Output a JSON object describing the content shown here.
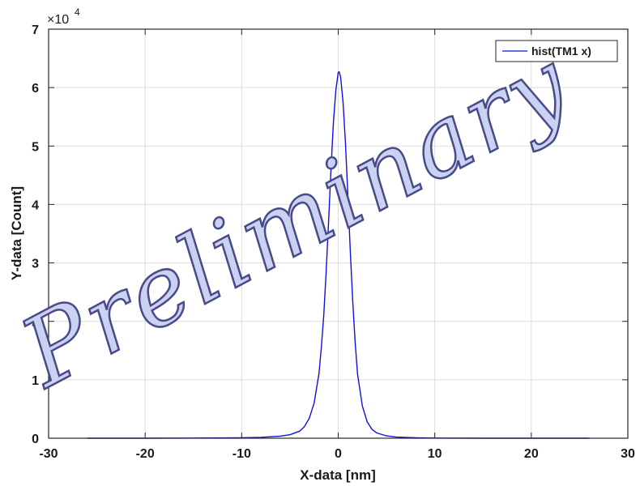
{
  "chart_data": {
    "type": "line",
    "xlabel": "X-data  [nm]",
    "ylabel": "Y-data  [Count]",
    "xlim": [
      -30,
      30
    ],
    "ylim": [
      0,
      70000
    ],
    "x_ticks": [
      -30,
      -20,
      -10,
      0,
      10,
      20,
      30
    ],
    "y_ticks": [
      0,
      1,
      2,
      3,
      4,
      5,
      6,
      7
    ],
    "y_exponent_label": "×10",
    "y_exponent_power": "4",
    "grid": true,
    "legend_position": "top-right",
    "series_color": "#1010e0",
    "series": [
      {
        "name": "hist(TM1 x)",
        "x": [
          -26,
          -20,
          -15,
          -10,
          -8,
          -6,
          -5,
          -4,
          -3.5,
          -3,
          -2.5,
          -2,
          -1.75,
          -1.5,
          -1.25,
          -1,
          -0.75,
          -0.5,
          -0.25,
          0,
          0.1,
          0.25,
          0.5,
          0.75,
          1,
          1.25,
          1.5,
          1.75,
          2,
          2.5,
          3,
          3.5,
          4,
          5,
          6,
          8,
          10,
          15,
          20,
          26
        ],
        "y": [
          0,
          0,
          20,
          80,
          150,
          350,
          600,
          1200,
          2000,
          3400,
          6000,
          11000,
          15500,
          21000,
          28500,
          37000,
          46000,
          54000,
          59500,
          62600,
          62700,
          61800,
          57500,
          50500,
          41500,
          32000,
          23500,
          16500,
          11000,
          5500,
          2800,
          1500,
          900,
          400,
          200,
          80,
          30,
          0,
          0,
          0
        ]
      }
    ],
    "watermark": "Preliminary"
  }
}
